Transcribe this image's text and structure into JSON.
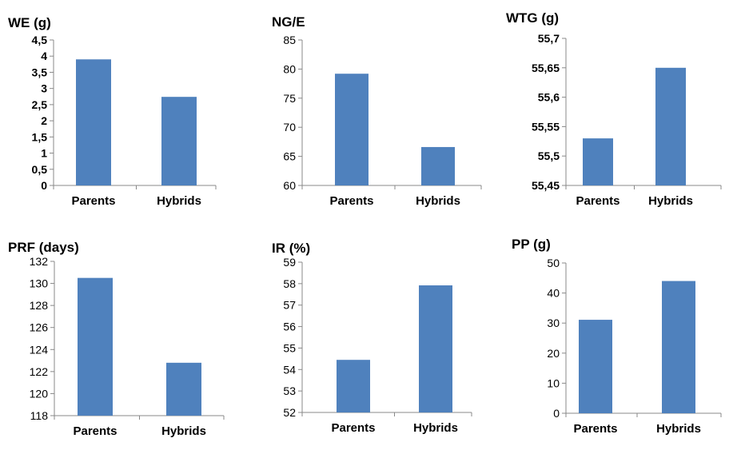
{
  "chart_data": [
    {
      "type": "bar",
      "title": "WE (g)",
      "categories": [
        "Parents",
        "Hybrids"
      ],
      "values": [
        3.9,
        2.74
      ],
      "ylim": [
        0,
        4.5
      ],
      "yticks": [
        "0",
        "0,5",
        "1",
        "1,5",
        "2",
        "2,5",
        "3",
        "3,5",
        "4",
        "4,5"
      ],
      "grid": false,
      "color": "#4f81bd"
    },
    {
      "type": "bar",
      "title": "NG/E",
      "categories": [
        "Parents",
        "Hybrids"
      ],
      "values": [
        79.2,
        66.6
      ],
      "ylim": [
        60,
        85
      ],
      "yticks": [
        "60",
        "65",
        "70",
        "75",
        "80",
        "85"
      ],
      "grid": false,
      "color": "#4f81bd"
    },
    {
      "type": "bar",
      "title": "WTG (g)",
      "categories": [
        "Parents",
        "Hybrids"
      ],
      "values": [
        55.53,
        55.65
      ],
      "ylim": [
        55.45,
        55.7
      ],
      "yticks": [
        "55,45",
        "55,5",
        "55,55",
        "55,6",
        "55,65",
        "55,7"
      ],
      "grid": false,
      "color": "#4f81bd"
    },
    {
      "type": "bar",
      "title": "PRF (days)",
      "categories": [
        "Parents",
        "Hybrids"
      ],
      "values": [
        130.5,
        122.8
      ],
      "ylim": [
        118,
        132
      ],
      "yticks": [
        "118",
        "120",
        "122",
        "124",
        "126",
        "128",
        "130",
        "132"
      ],
      "grid": false,
      "color": "#4f81bd"
    },
    {
      "type": "bar",
      "title": "IR (%)",
      "categories": [
        "Parents",
        "Hybrids"
      ],
      "values": [
        54.45,
        57.92
      ],
      "ylim": [
        52,
        59
      ],
      "yticks": [
        "52",
        "53",
        "54",
        "55",
        "56",
        "57",
        "58",
        "59"
      ],
      "grid": false,
      "color": "#4f81bd"
    },
    {
      "type": "bar",
      "title": "PP (g)",
      "categories": [
        "Parents",
        "Hybrids"
      ],
      "values": [
        31.1,
        44.0
      ],
      "ylim": [
        0,
        50
      ],
      "yticks": [
        "0",
        "10",
        "20",
        "30",
        "40",
        "50"
      ],
      "grid": false,
      "color": "#4f81bd"
    }
  ]
}
